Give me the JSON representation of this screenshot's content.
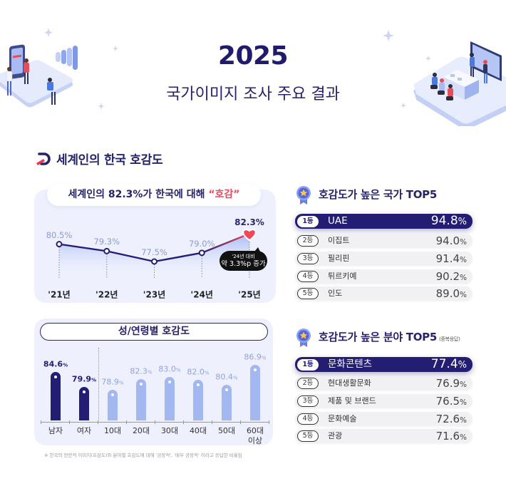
{
  "header": {
    "year": "2025",
    "subtitle": "국가이미지 조사 주요 결과"
  },
  "section": {
    "title": "세계인의 한국 호감도"
  },
  "units": {
    "percent": "%"
  },
  "trend_card": {
    "headline_prefix": "세계인의 82.3%가 한국에 대해 ",
    "headline_highlight": "“호감”",
    "tooltip_line1": "'24년 대비",
    "tooltip_line2": "약 3.3%p 증가"
  },
  "demographic_card": {
    "title": "성/연령별 호감도"
  },
  "country_top5": {
    "title": "호감도가 높은 국가 TOP5",
    "items": [
      {
        "rank": "1등",
        "name": "UAE",
        "value": "94.8"
      },
      {
        "rank": "2등",
        "name": "이집트",
        "value": "94.0"
      },
      {
        "rank": "3등",
        "name": "필리핀",
        "value": "91.4"
      },
      {
        "rank": "4등",
        "name": "튀르키예",
        "value": "90.2"
      },
      {
        "rank": "5등",
        "name": "인도",
        "value": "89.0"
      }
    ]
  },
  "field_top5": {
    "title": "호감도가 높은 분야 TOP5",
    "note": "(중복응답)",
    "items": [
      {
        "rank": "1등",
        "name": "문화콘텐츠",
        "value": "77.4"
      },
      {
        "rank": "2등",
        "name": "현대생활문화",
        "value": "76.9"
      },
      {
        "rank": "3등",
        "name": "제품 및 브랜드",
        "value": "76.5"
      },
      {
        "rank": "4등",
        "name": "문화예술",
        "value": "72.6"
      },
      {
        "rank": "5등",
        "name": "관광",
        "value": "71.6"
      }
    ]
  },
  "footnote": "※ 한국의 전반적 이미지(호감도)와 분야별 호감도에 대해 '긍정적', '매우 긍정적' 이라고 응답한 비율임",
  "colors": {
    "navy": "#231d74",
    "light_bar": "#a3b8f0",
    "accent_red": "#f0475a",
    "card_bg": "#eef1fd"
  },
  "chart_data": [
    {
      "type": "line",
      "title": "세계인의 82.3%가 한국에 대해 “호감”",
      "categories": [
        "'21년",
        "'22년",
        "'23년",
        "'24년",
        "'25년"
      ],
      "values": [
        80.5,
        79.3,
        77.5,
        79.0,
        82.3
      ],
      "labels": [
        "80.5%",
        "79.3%",
        "77.5%",
        "79.0%",
        "82.3%"
      ],
      "annotation": "'24년 대비 약 3.3%p 증가",
      "xlabel": "",
      "ylabel": "",
      "grid": false
    },
    {
      "type": "bar",
      "title": "성/연령별 호감도",
      "categories": [
        "남자",
        "여자",
        "10대",
        "20대",
        "30대",
        "40대",
        "50대",
        "60대\n이상"
      ],
      "values": [
        84.6,
        79.9,
        78.9,
        82.3,
        83.0,
        82.0,
        80.4,
        86.9
      ],
      "groups": [
        "gender",
        "gender",
        "age",
        "age",
        "age",
        "age",
        "age",
        "age"
      ],
      "xlabel": "",
      "ylabel": "",
      "grid": false
    }
  ]
}
